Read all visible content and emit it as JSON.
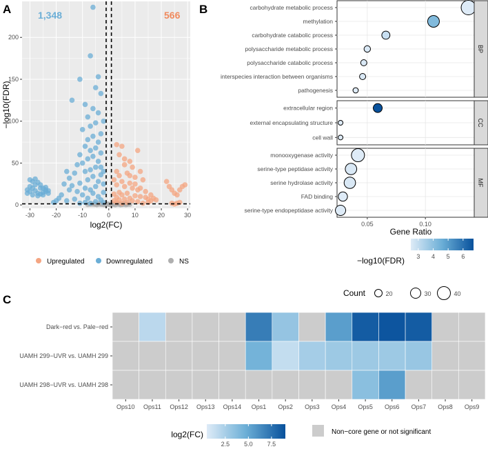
{
  "colors": {
    "up": "#F4A582",
    "down": "#6BAED6",
    "ns": "#AFAFAF",
    "panel_bg": "#EBEBEB",
    "grid": "#FFFFFF",
    "count_down": "#6BAED6",
    "count_up": "#F08A5D",
    "heat_low": "#DEEBF7",
    "heat_high": "#08519C",
    "non_core": "#CCCCCC",
    "strip": "#D9D9D9"
  },
  "chart_data": [
    {
      "panel": "A",
      "type": "scatter",
      "title": "",
      "xlabel": "log2(FC)",
      "ylabel": "−log10(FDR)",
      "xlim": [
        -33,
        31
      ],
      "ylim": [
        -4,
        243
      ],
      "xticks": [
        -30,
        -20,
        -10,
        0,
        10,
        20,
        30
      ],
      "yticks": [
        0,
        50,
        100,
        150,
        200
      ],
      "threshold_lines": {
        "x": [
          -1,
          1
        ],
        "y": 1.3
      },
      "count_labels": {
        "downregulated": "1,348",
        "upregulated": "566"
      },
      "legend": {
        "items": [
          "Upregulated",
          "Downregulated",
          "NS"
        ],
        "placement": "bottom"
      },
      "series": [
        {
          "name": "Upregulated",
          "points": [
            [
              3,
              72
            ],
            [
              5,
              70
            ],
            [
              4,
              60
            ],
            [
              11,
              65
            ],
            [
              8,
              52
            ],
            [
              6,
              48
            ],
            [
              9,
              45
            ],
            [
              12,
              40
            ],
            [
              7,
              38
            ],
            [
              4,
              35
            ],
            [
              10,
              33
            ],
            [
              13,
              30
            ],
            [
              5,
              28
            ],
            [
              8,
              26
            ],
            [
              3,
              24
            ],
            [
              6,
              22
            ],
            [
              9,
              20
            ],
            [
              11,
              18
            ],
            [
              14,
              16
            ],
            [
              4,
              15
            ],
            [
              7,
              14
            ],
            [
              2,
              13
            ],
            [
              5,
              12
            ],
            [
              10,
              11
            ],
            [
              12,
              10
            ],
            [
              3,
              9
            ],
            [
              8,
              8
            ],
            [
              6,
              7
            ],
            [
              4,
              6
            ],
            [
              9,
              5
            ],
            [
              2,
              5
            ],
            [
              11,
              4
            ],
            [
              3,
              3
            ],
            [
              7,
              3
            ],
            [
              5,
              2
            ],
            [
              13,
              2
            ],
            [
              15,
              3
            ],
            [
              16,
              5
            ],
            [
              2,
              30
            ],
            [
              3,
              40
            ],
            [
              6,
              55
            ],
            [
              8,
              35
            ],
            [
              10,
              25
            ],
            [
              12,
              20
            ],
            [
              14,
              9
            ],
            [
              15,
              7
            ],
            [
              24,
              18
            ],
            [
              25,
              14
            ],
            [
              26,
              12
            ],
            [
              27,
              18
            ],
            [
              28,
              22
            ],
            [
              29,
              24
            ],
            [
              22,
              28
            ],
            [
              23,
              22
            ],
            [
              16,
              12
            ],
            [
              17,
              8
            ],
            [
              18,
              6
            ],
            [
              24,
              2
            ],
            [
              25,
              1
            ],
            [
              26,
              2
            ],
            [
              27,
              3
            ]
          ]
        },
        {
          "name": "Downregulated",
          "points": [
            [
              -6,
              236
            ],
            [
              -7,
              178
            ],
            [
              -4,
              153
            ],
            [
              -11,
              150
            ],
            [
              -5,
              140
            ],
            [
              -3,
              133
            ],
            [
              -14,
              125
            ],
            [
              -9,
              120
            ],
            [
              -6,
              115
            ],
            [
              -4,
              110
            ],
            [
              -8,
              105
            ],
            [
              -2,
              100
            ],
            [
              -5,
              98
            ],
            [
              -7,
              94
            ],
            [
              -10,
              90
            ],
            [
              -3,
              85
            ],
            [
              -6,
              82
            ],
            [
              -8,
              78
            ],
            [
              -4,
              75
            ],
            [
              -9,
              70
            ],
            [
              -5,
              68
            ],
            [
              -7,
              65
            ],
            [
              -3,
              62
            ],
            [
              -11,
              60
            ],
            [
              -6,
              58
            ],
            [
              -8,
              55
            ],
            [
              -4,
              52
            ],
            [
              -10,
              50
            ],
            [
              -12,
              48
            ],
            [
              -5,
              45
            ],
            [
              -7,
              42
            ],
            [
              -9,
              40
            ],
            [
              -13,
              38
            ],
            [
              -3,
              36
            ],
            [
              -6,
              34
            ],
            [
              -15,
              32
            ],
            [
              -8,
              30
            ],
            [
              -4,
              28
            ],
            [
              -11,
              26
            ],
            [
              -17,
              25
            ],
            [
              -14,
              23
            ],
            [
              -5,
              22
            ],
            [
              -9,
              20
            ],
            [
              -7,
              18
            ],
            [
              -12,
              16
            ],
            [
              -6,
              14
            ],
            [
              -10,
              12
            ],
            [
              -4,
              10
            ],
            [
              -8,
              8
            ],
            [
              -13,
              7
            ],
            [
              -3,
              6
            ],
            [
              -16,
              5
            ],
            [
              -5,
              4
            ],
            [
              -9,
              3
            ],
            [
              -2,
              3
            ],
            [
              -7,
              2
            ],
            [
              -11,
              2
            ],
            [
              -2,
              15
            ],
            [
              -2,
              25
            ],
            [
              -2,
              40
            ],
            [
              -3,
              45
            ],
            [
              -16,
              40
            ],
            [
              -15,
              18
            ],
            [
              -18,
              12
            ],
            [
              -19,
              8
            ],
            [
              -20,
              5
            ],
            [
              -21,
              3
            ],
            [
              -30,
              30
            ],
            [
              -29,
              28
            ],
            [
              -28,
              31
            ],
            [
              -27,
              27
            ],
            [
              -26,
              24
            ],
            [
              -25,
              20
            ],
            [
              -24,
              18
            ],
            [
              -31,
              18
            ],
            [
              -30,
              16
            ],
            [
              -29,
              20
            ],
            [
              -28,
              17
            ],
            [
              -27,
              14
            ],
            [
              -26,
              13
            ],
            [
              -25,
              15
            ],
            [
              -24,
              16
            ],
            [
              -23,
              14
            ],
            [
              -31,
              14
            ],
            [
              -29,
              12
            ],
            [
              -27,
              11
            ],
            [
              -25,
              12
            ],
            [
              -30,
              22
            ],
            [
              -28,
              24
            ],
            [
              -26,
              20
            ],
            [
              -24,
              21
            ],
            [
              -23,
              17
            ]
          ]
        },
        {
          "name": "NS",
          "points": [
            [
              -6,
              1
            ],
            [
              -5,
              0.6
            ],
            [
              -4,
              1.1
            ],
            [
              -3,
              0.8
            ],
            [
              -2,
              0.5
            ],
            [
              -1,
              1.0
            ],
            [
              0,
              0.7
            ],
            [
              1,
              0.9
            ],
            [
              2,
              0.6
            ],
            [
              3,
              1.0
            ],
            [
              4,
              0.8
            ],
            [
              5,
              0.5
            ],
            [
              6,
              1.1
            ],
            [
              7,
              0.7
            ],
            [
              -7,
              0.9
            ],
            [
              -8,
              0.6
            ],
            [
              8,
              0.9
            ],
            [
              -5.5,
              1.2
            ],
            [
              -4.5,
              0.4
            ],
            [
              -3.5,
              1.2
            ],
            [
              -2.5,
              0.9
            ],
            [
              -1.5,
              0.3
            ],
            [
              -0.5,
              1.2
            ],
            [
              0.5,
              0.4
            ],
            [
              1.5,
              1.2
            ],
            [
              2.5,
              0.3
            ],
            [
              3.5,
              1.2
            ],
            [
              4.5,
              0.3
            ],
            [
              5.5,
              0.9
            ],
            [
              6.5,
              0.4
            ]
          ]
        }
      ]
    },
    {
      "panel": "B",
      "type": "scatter",
      "subtype": "dot-plot",
      "xlabel": "Gene Ratio",
      "xlim": [
        0.024,
        0.142
      ],
      "xticks": [
        0.05,
        0.1
      ],
      "xtick_labels": [
        "0.05",
        "0.10"
      ],
      "facets": [
        {
          "name": "BP",
          "terms": [
            {
              "term": "carbohydrate metabolic process",
              "gene_ratio": 0.137,
              "count": 45,
              "log10fdr": 2.5
            },
            {
              "term": "methylation",
              "gene_ratio": 0.107,
              "count": 35,
              "log10fdr": 4.2
            },
            {
              "term": "carbohydrate catabolic process",
              "gene_ratio": 0.066,
              "count": 22,
              "log10fdr": 2.9
            },
            {
              "term": "polysaccharide metabolic process",
              "gene_ratio": 0.05,
              "count": 16,
              "log10fdr": 2.6
            },
            {
              "term": "polysaccharide catabolic process",
              "gene_ratio": 0.047,
              "count": 15,
              "log10fdr": 2.6
            },
            {
              "term": "interspecies interaction between organisms",
              "gene_ratio": 0.046,
              "count": 15,
              "log10fdr": 2.6
            },
            {
              "term": "pathogenesis",
              "gene_ratio": 0.04,
              "count": 12,
              "log10fdr": 2.5
            }
          ]
        },
        {
          "name": "CC",
          "terms": [
            {
              "term": "extracellular region",
              "gene_ratio": 0.059,
              "count": 25,
              "log10fdr": 6.7
            },
            {
              "term": "external encapsulating structure",
              "gene_ratio": 0.027,
              "count": 10,
              "log10fdr": 2.5
            },
            {
              "term": "cell wall",
              "gene_ratio": 0.027,
              "count": 10,
              "log10fdr": 2.5
            }
          ]
        },
        {
          "name": "MF",
          "terms": [
            {
              "term": "monooxygenase activity",
              "gene_ratio": 0.042,
              "count": 40,
              "log10fdr": 2.5
            },
            {
              "term": "serine-type peptidase activity",
              "gene_ratio": 0.036,
              "count": 34,
              "log10fdr": 2.6
            },
            {
              "term": "serine hydrolase activity",
              "gene_ratio": 0.035,
              "count": 34,
              "log10fdr": 2.6
            },
            {
              "term": "FAD binding",
              "gene_ratio": 0.029,
              "count": 26,
              "log10fdr": 2.5
            },
            {
              "term": "serine-type endopeptidase activity",
              "gene_ratio": 0.027,
              "count": 30,
              "log10fdr": 2.5
            }
          ]
        }
      ],
      "color_legend": {
        "title": "−log10(FDR)",
        "range": [
          2.5,
          6.7
        ],
        "ticks": [
          3,
          4,
          5,
          6
        ]
      },
      "size_legend": {
        "title": "Count",
        "values": [
          20,
          30,
          40
        ]
      }
    },
    {
      "panel": "C",
      "type": "heatmap",
      "rows": [
        "Dark−red vs. Pale−red",
        "UAMH 299−UVR vs. UAMH 299",
        "UAMH 298−UVR vs. UAMH 298"
      ],
      "columns": [
        "Ops10",
        "Ops11",
        "Ops12",
        "Ops13",
        "Ops14",
        "Ops1",
        "Ops2",
        "Ops3",
        "Ops4",
        "Ops5",
        "Ops6",
        "Ops7",
        "Ops8",
        "Ops9"
      ],
      "values": [
        [
          null,
          1.8,
          null,
          null,
          null,
          7.0,
          3.2,
          null,
          5.5,
          8.5,
          8.8,
          8.5,
          null,
          null
        ],
        [
          null,
          null,
          null,
          null,
          null,
          4.4,
          1.5,
          2.6,
          2.9,
          2.9,
          2.9,
          3.1,
          null,
          null
        ],
        [
          null,
          null,
          null,
          null,
          null,
          null,
          null,
          null,
          null,
          3.6,
          5.5,
          null,
          null,
          null
        ]
      ],
      "color_legend": {
        "title": "log2(FC)",
        "range": [
          0.5,
          9
        ],
        "ticks": [
          2.5,
          5.0,
          7.5
        ],
        "tick_labels": [
          "2.5",
          "5.0",
          "7.5"
        ]
      },
      "na_legend": "Non−core gene or not significant"
    }
  ],
  "panel_labels": {
    "a": "A",
    "b": "B",
    "c": "C"
  }
}
